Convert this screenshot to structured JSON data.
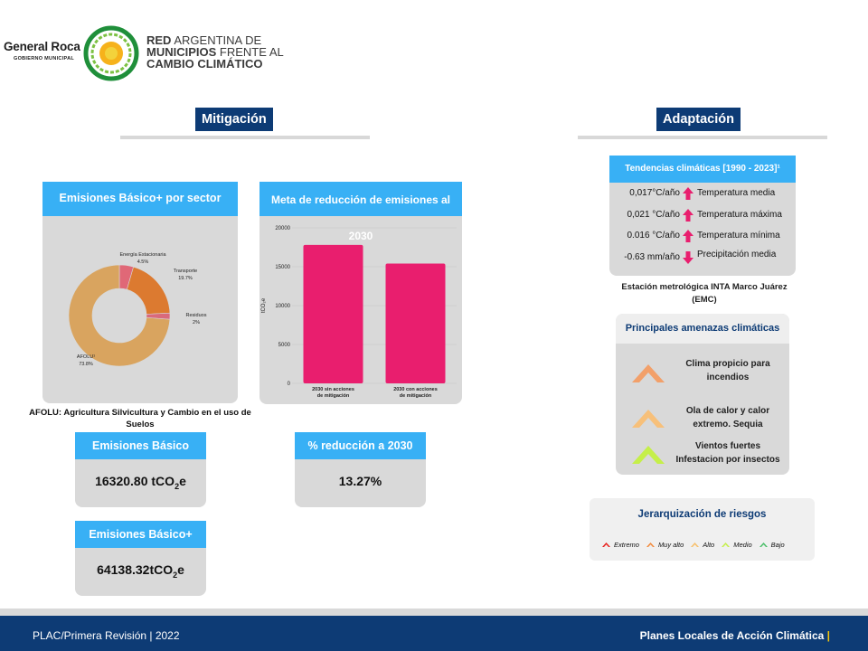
{
  "header": {
    "municipality_name": "General Roca",
    "municipality_sub": "GOBIERNO MUNICIPAL",
    "network_line1_bold": "RED",
    "network_line1_rest": "ARGENTINA DE",
    "network_line2_bold": "MUNICIPIOS",
    "network_line2_rest": "FRENTE AL",
    "network_line3": "CAMBIO CLIMÁTICO"
  },
  "mitigation": {
    "title": "Mitigación",
    "donut_title": "Emisiones Básico+ por sector",
    "donut_note": "AFOLU: Agricultura Silvicultura y Cambio en el uso de Suelos",
    "bar_title": "Meta de reducción de emisiones al 2030",
    "basic_label": "Emisiones Básico",
    "basic_value": "16320.80 tCO",
    "basic_sub": "2",
    "basic_unit_tail": "e",
    "basicplus_label": "Emisiones Básico+",
    "basicplus_value": "64138.32tCO",
    "basicplus_sub": "2",
    "basicplus_unit_tail": "e",
    "reduction_label": "% reducción a 2030",
    "reduction_value": "13.27%"
  },
  "chart_data": [
    {
      "type": "pie",
      "title": "Emisiones Básico+ por sector",
      "categories": [
        "Energía Estacionaria",
        "Transporte",
        "Residuos",
        "AFOLU¹"
      ],
      "value_labels": [
        "4.5%",
        "19.7%",
        "2%",
        "73.8%"
      ],
      "values": [
        4.5,
        19.7,
        2.0,
        73.8
      ],
      "colors": [
        "#e06877",
        "#dc7a30",
        "#d96a7c",
        "#d9a45f"
      ],
      "donut": true
    },
    {
      "type": "bar",
      "title": "Meta de reducción de emisiones al 2030",
      "categories": [
        "2030 sin acciones de mitigación",
        "2030 con acciones de mitigación"
      ],
      "values": [
        17800,
        15400
      ],
      "ylabel": "tCO₂e",
      "ylim": [
        0,
        20000
      ],
      "yticks": [
        0,
        5000,
        10000,
        15000,
        20000
      ],
      "color": "#e91e6e",
      "grid": true
    }
  ],
  "adaptation": {
    "title": "Adaptación",
    "trends_title": "Tendencias climáticas  [1990 - 2023]¹",
    "trends": [
      {
        "value": "0,017°C/año",
        "label": "Temperatura media",
        "direction": "up"
      },
      {
        "value": "0,021 °C/año",
        "label": "Temperatura máxima",
        "direction": "up"
      },
      {
        "value": "0.016 °C/año",
        "label": "Temperatura mínima",
        "direction": "up"
      },
      {
        "value": "-0.63 mm/año",
        "label": "Precipitación media",
        "direction": "down"
      }
    ],
    "station_note": "Estación metrológica INTA Marco Juárez (EMC)",
    "threats_title": "Principales amenazas climáticas",
    "threats": [
      {
        "line1": "Clima propicio para",
        "line2": "incendios",
        "color": "#f2a06a"
      },
      {
        "line1": "Ola de calor y calor",
        "line2": "extremo. Sequia",
        "color": "#f7c07a"
      },
      {
        "line1": "Vientos fuertes",
        "line2": "Infestacion por insectos",
        "color": "#c5ef4a"
      }
    ],
    "risk_title": "Jerarquización de riesgos",
    "risk_levels": [
      {
        "label": "Extremo",
        "color": "#e8231f"
      },
      {
        "label": "Muy alto",
        "color": "#f28a3c"
      },
      {
        "label": "Alto",
        "color": "#f7bf6a"
      },
      {
        "label": "Medio",
        "color": "#c5ef4a"
      },
      {
        "label": "Bajo",
        "color": "#4cbf6a"
      }
    ]
  },
  "footer": {
    "left": "PLAC/Primera Revisión  | 2022",
    "right": "Planes Locales de Acción Climática",
    "right_bar": "|"
  },
  "colors": {
    "navy": "#0d3b75",
    "accent_blue": "#38b0f5",
    "magenta": "#e91e6e",
    "panel_gray": "#d9d9d9"
  }
}
